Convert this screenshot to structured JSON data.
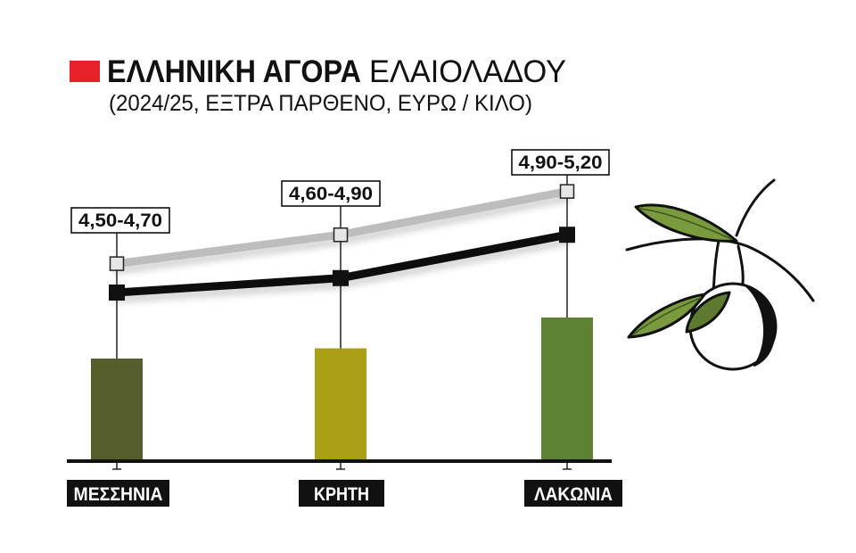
{
  "chart_data": {
    "type": "line",
    "title_parts": [
      "ΕΛΛΗΝΙΚΗ ΑΓΟΡΑ",
      "ΕΛΑΙΟΛΑΔΟΥ"
    ],
    "subtitle": "(2024/25, ΕΞΤΡΑ ΠΑΡΘΕΝΟ, ΕΥΡΩ / ΚΙΛΟ)",
    "categories": [
      "ΜΕΣΣΗΝΙΑ",
      "ΚΡΗΤΗ",
      "ΛΑΚΩΝΙΑ"
    ],
    "series": [
      {
        "values": [
          4.5,
          4.6,
          4.9
        ],
        "color": "#111111"
      },
      {
        "values": [
          4.7,
          4.9,
          5.2
        ],
        "color": "#bdbdbd"
      }
    ],
    "data_labels": [
      "4,50-4,70",
      "4,60-4,90",
      "4,90-5,20"
    ],
    "bar_colors": [
      "#555e2b",
      "#a9a017",
      "#5e8233"
    ],
    "grid": false
  },
  "colors": {
    "accent": "#e8202a",
    "ink": "#111111",
    "leaf": "#7a9a3e",
    "leaf_dark": "#5e7a2e"
  },
  "icons": {
    "illustration": "olive-branch-icon"
  }
}
